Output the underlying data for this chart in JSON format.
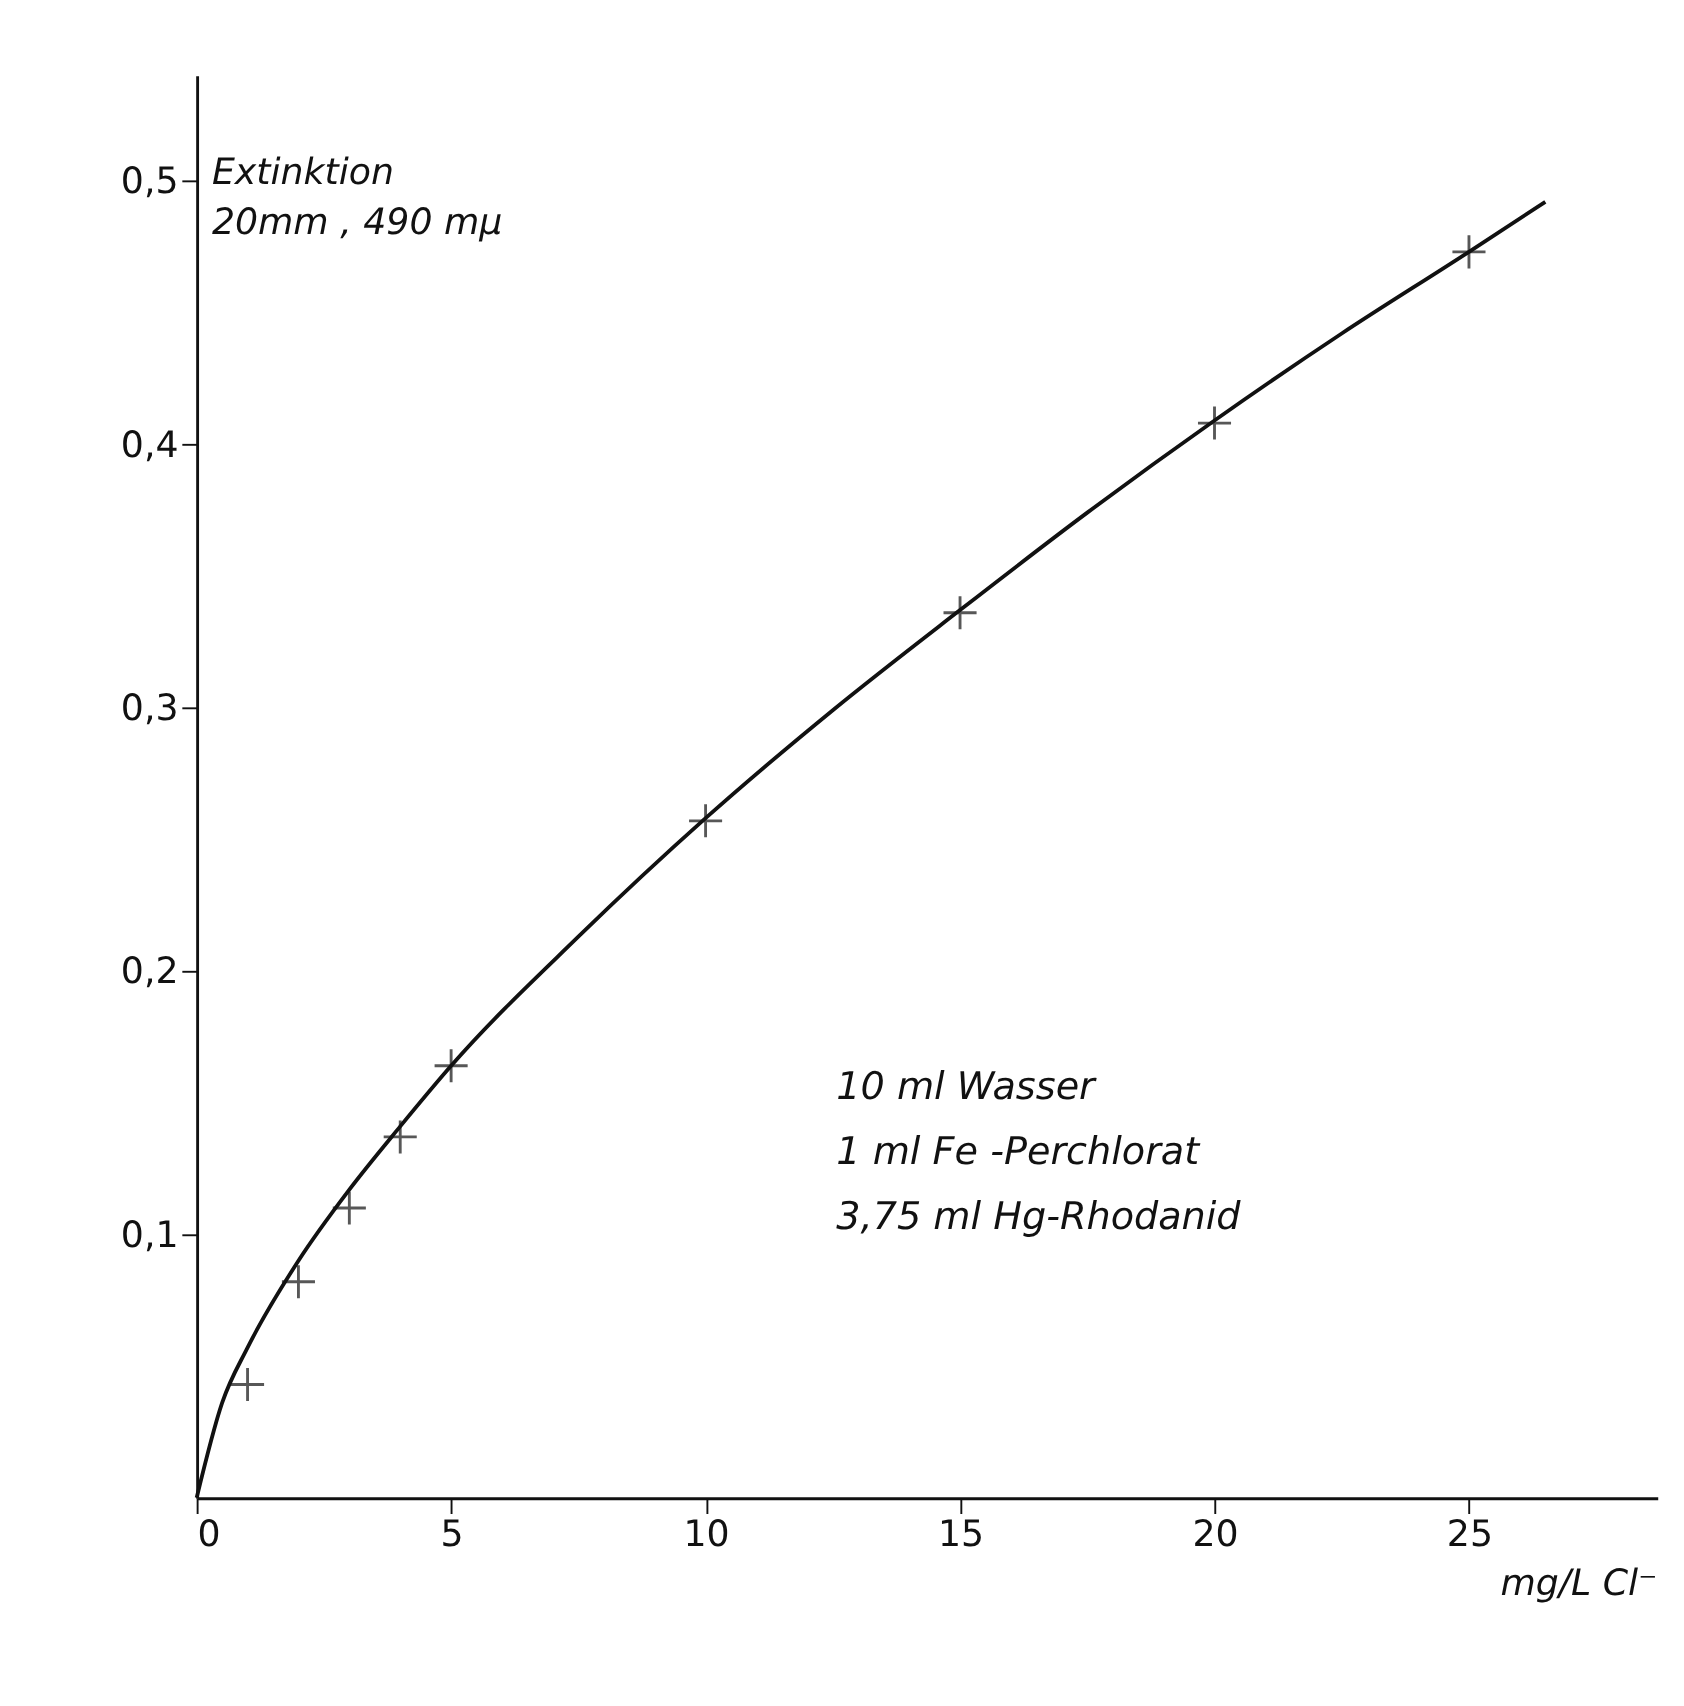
{
  "chart_data": {
    "type": "scatter",
    "xlabel": "mg/L Cl⁻",
    "ylabel": "Extinktion\n20mm , 490 mμ",
    "x": [
      1,
      2,
      3,
      4,
      5,
      10,
      15,
      20,
      25
    ],
    "series": [
      {
        "color": "#111111",
        "marker": "cross",
        "values": [
          0.043,
          0.082,
          0.11,
          0.137,
          0.164,
          0.257,
          0.336,
          0.408,
          0.473
        ]
      },
      {
        "type": "line",
        "color": "#111111",
        "marker": "none",
        "line_style": "solid",
        "x": [
          0,
          0.5,
          1,
          2,
          3,
          4,
          5,
          7.5,
          10,
          12.5,
          15,
          17.5,
          20,
          22.5,
          25,
          26.5
        ],
        "values": [
          0,
          0.036,
          0.057,
          0.09,
          0.117,
          0.141,
          0.164,
          0.213,
          0.258,
          0.299,
          0.337,
          0.374,
          0.409,
          0.442,
          0.473,
          0.492
        ]
      }
    ],
    "xlim": [
      0,
      28.7
    ],
    "xticks": [
      0,
      5,
      10,
      15,
      20,
      25
    ],
    "ylim": [
      0,
      0.54
    ],
    "yticks": [
      {
        "value": 0.1,
        "label": "0,1"
      },
      {
        "value": 0.2,
        "label": "0,2"
      },
      {
        "value": 0.3,
        "label": "0,3"
      },
      {
        "value": 0.4,
        "label": "0,4"
      },
      {
        "value": 0.5,
        "label": "0,5"
      }
    ],
    "grid": false,
    "annotations": [
      "10 ml Wasser\n   1 ml Fe -Perchlorat\n3,75 ml Hg-Rhodanid"
    ]
  }
}
